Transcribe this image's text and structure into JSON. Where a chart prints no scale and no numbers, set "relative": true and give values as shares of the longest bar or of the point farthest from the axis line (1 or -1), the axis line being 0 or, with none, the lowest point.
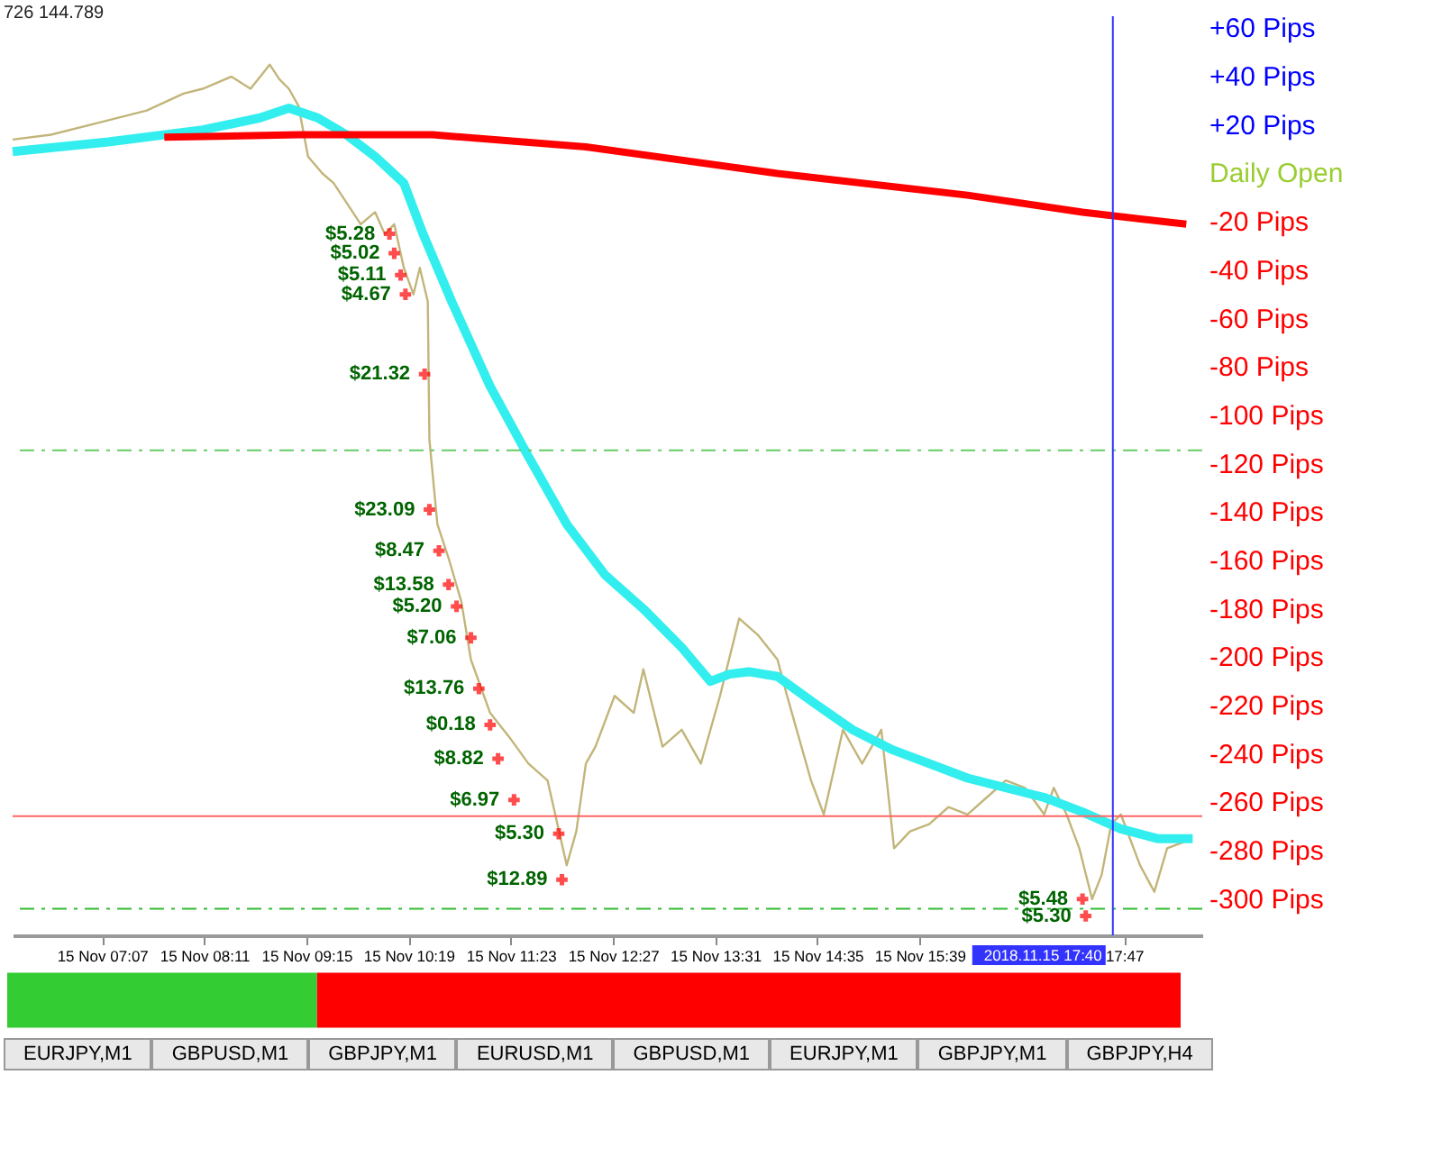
{
  "chart_data": [
    {
      "type": "line",
      "x": [
        "2018-11-15T06:11",
        "2018-11-15T06:35",
        "2018-11-15T07:05",
        "2018-11-15T07:35",
        "2018-11-15T07:58",
        "2018-11-15T08:10",
        "2018-11-15T08:28",
        "2018-11-15T08:40",
        "2018-11-15T08:52",
        "2018-11-15T08:58",
        "2018-11-15T09:04",
        "2018-11-15T09:10",
        "2018-11-15T09:16",
        "2018-11-15T09:25",
        "2018-11-15T09:32",
        "2018-11-15T09:40",
        "2018-11-15T09:49",
        "2018-11-15T09:58",
        "2018-11-15T10:04",
        "2018-11-15T10:10",
        "2018-11-15T10:16",
        "2018-11-15T10:22",
        "2018-11-15T10:26",
        "2018-11-15T10:31",
        "2018-11-15T10:32",
        "2018-11-15T10:37",
        "2018-11-15T10:44",
        "2018-11-15T10:52",
        "2018-11-15T10:58",
        "2018-11-15T11:10",
        "2018-11-15T11:22",
        "2018-11-15T11:34",
        "2018-11-15T11:46",
        "2018-11-15T11:58",
        "2018-11-15T12:04",
        "2018-11-15T12:10",
        "2018-11-15T12:16",
        "2018-11-15T12:28",
        "2018-11-15T12:40",
        "2018-11-15T12:46",
        "2018-11-15T12:58",
        "2018-11-15T13:10",
        "2018-11-15T13:22",
        "2018-11-15T13:34",
        "2018-11-15T13:46",
        "2018-11-15T13:58",
        "2018-11-15T14:10",
        "2018-11-15T14:16",
        "2018-11-15T14:22",
        "2018-11-15T14:31",
        "2018-11-15T14:39",
        "2018-11-15T14:51",
        "2018-11-15T15:03",
        "2018-11-15T15:15",
        "2018-11-15T15:23",
        "2018-11-15T15:33",
        "2018-11-15T15:45",
        "2018-11-15T15:57",
        "2018-11-15T16:09",
        "2018-11-15T16:21",
        "2018-11-15T16:33",
        "2018-11-15T16:45",
        "2018-11-15T16:57",
        "2018-11-15T17:03",
        "2018-11-15T17:11",
        "2018-11-15T17:19",
        "2018-11-15T17:27",
        "2018-11-15T17:33",
        "2018-11-15T17:39",
        "2018-11-15T17:45",
        "2018-11-15T17:57",
        "2018-11-15T18:06",
        "2018-11-15T18:14",
        "2018-11-15T18:26"
      ],
      "series": [
        {
          "color": "#c2b57a",
          "values": [
            14,
            16,
            21,
            26,
            33,
            35,
            40,
            35,
            45,
            39,
            35,
            28,
            7,
            0,
            -4,
            -12,
            -21,
            -16,
            -25,
            -21,
            -39,
            -50,
            -39,
            -53,
            -110,
            -145,
            -159,
            -177,
            -201,
            -223,
            -233,
            -244,
            -251,
            -286,
            -272,
            -244,
            -237,
            -216,
            -223,
            -205,
            -237,
            -230,
            -244,
            -216,
            -184,
            -191,
            -201,
            -216,
            -230,
            -251,
            -265,
            -230,
            -244,
            -230,
            -279,
            -272,
            -269,
            -262,
            -265,
            -258,
            -251,
            -254,
            -265,
            -254,
            -265,
            -279,
            -300,
            -290,
            -269,
            -265,
            -286,
            -297,
            -279,
            -276
          ]
        },
        {
          "color": "#33eeee",
          "x": [
            "2018-11-15T06:11",
            "2018-11-15T07:11",
            "2018-11-15T08:10",
            "2018-11-15T08:46",
            "2018-11-15T09:04",
            "2018-11-15T09:22",
            "2018-11-15T09:40",
            "2018-11-15T09:58",
            "2018-11-15T10:16",
            "2018-11-15T10:28",
            "2018-11-15T10:46",
            "2018-11-15T11:10",
            "2018-11-15T11:34",
            "2018-11-15T11:58",
            "2018-11-15T12:22",
            "2018-11-15T12:46",
            "2018-11-15T13:10",
            "2018-11-15T13:28",
            "2018-11-15T13:40",
            "2018-11-15T13:52",
            "2018-11-15T14:10",
            "2018-11-15T14:33",
            "2018-11-15T14:57",
            "2018-11-15T15:21",
            "2018-11-15T15:45",
            "2018-11-15T16:09",
            "2018-11-15T16:33",
            "2018-11-15T16:57",
            "2018-11-15T17:21",
            "2018-11-15T17:45",
            "2018-11-15T18:08",
            "2018-11-15T18:30"
          ],
          "values": [
            9,
            13,
            18,
            23,
            27,
            23,
            16,
            7,
            -4,
            -25,
            -53,
            -88,
            -117,
            -145,
            -166,
            -180,
            -196,
            -210,
            -207,
            -206,
            -208,
            -219,
            -230,
            -238,
            -244,
            -250,
            -254,
            -258,
            -264,
            -271,
            -275,
            -275
          ]
        },
        {
          "color": "#ff0000",
          "x": [
            "2018-11-15T07:46",
            "2018-11-15T09:10",
            "2018-11-15T10:34",
            "2018-11-15T12:10",
            "2018-11-15T14:10",
            "2018-11-15T16:09",
            "2018-11-15T17:21",
            "2018-11-15T18:26"
          ],
          "values": [
            15,
            16,
            16,
            11,
            0,
            -9,
            -16,
            -21
          ]
        },
        {
          "type": "scatter",
          "color": "#ff0000",
          "marker": "cross",
          "x": [
            "2018-11-15T10:07",
            "2018-11-15T10:10",
            "2018-11-15T10:14",
            "2018-11-15T10:17",
            "2018-11-15T10:29",
            "2018-11-15T10:32",
            "2018-11-15T10:38",
            "2018-11-15T10:44",
            "2018-11-15T10:49",
            "2018-11-15T10:58",
            "2018-11-15T11:03",
            "2018-11-15T11:10",
            "2018-11-15T11:15",
            "2018-11-15T11:25",
            "2018-11-15T11:53",
            "2018-11-15T11:55",
            "2018-11-15T17:21",
            "2018-11-15T17:23"
          ],
          "values": [
            -25,
            -33,
            -42,
            -50,
            -83,
            -139,
            -156,
            -170,
            -179,
            -192,
            -213,
            -228,
            -242,
            -259,
            -273,
            -292,
            -300,
            -307
          ]
        }
      ],
      "xlim": [
        "2018-11-15T06:11",
        "2018-11-15T18:36"
      ],
      "xticks": [
        {
          "value": "2018-11-15T07:07",
          "label": "15 Nov 07:07"
        },
        {
          "value": "2018-11-15T08:11",
          "label": "15 Nov 08:11"
        },
        {
          "value": "2018-11-15T09:15",
          "label": "15 Nov 09:15"
        },
        {
          "value": "2018-11-15T10:19",
          "label": "15 Nov 10:19"
        },
        {
          "value": "2018-11-15T11:23",
          "label": "15 Nov 11:23"
        },
        {
          "value": "2018-11-15T12:27",
          "label": "15 Nov 12:27"
        },
        {
          "value": "2018-11-15T13:31",
          "label": "15 Nov 13:31"
        },
        {
          "value": "2018-11-15T14:35",
          "label": "15 Nov 14:35"
        },
        {
          "value": "2018-11-15T15:39",
          "label": "15 Nov 15:39"
        },
        {
          "value": "2018-11-15T17:47",
          "label": "17:47"
        }
      ],
      "ylim": [
        -315,
        65
      ],
      "yticks": [
        {
          "value": 60,
          "label": "+60 Pips"
        },
        {
          "value": 40,
          "label": "+40 Pips"
        },
        {
          "value": 20,
          "label": "+20 Pips"
        },
        {
          "value": 0,
          "label": "Daily Open"
        },
        {
          "value": -20,
          "label": "-20 Pips"
        },
        {
          "value": -40,
          "label": "-40 Pips"
        },
        {
          "value": -60,
          "label": "-60 Pips"
        },
        {
          "value": -80,
          "label": "-80 Pips"
        },
        {
          "value": -100,
          "label": "-100 Pips"
        },
        {
          "value": -120,
          "label": "-120 Pips"
        },
        {
          "value": -140,
          "label": "-140 Pips"
        },
        {
          "value": -160,
          "label": "-160 Pips"
        },
        {
          "value": -180,
          "label": "-180 Pips"
        },
        {
          "value": -200,
          "label": "-200 Pips"
        },
        {
          "value": -220,
          "label": "-220 Pips"
        },
        {
          "value": -240,
          "label": "-240 Pips"
        },
        {
          "value": -260,
          "label": "-260 Pips"
        },
        {
          "value": -280,
          "label": "-280 Pips"
        },
        {
          "value": -300,
          "label": "-300 Pips"
        }
      ],
      "ref_lines": [
        {
          "axis": "y",
          "value": -114.5,
          "color": "#66cc66",
          "line_style": "dashed"
        },
        {
          "axis": "y",
          "value": -304,
          "color": "#33bb33",
          "line_style": "dashed"
        },
        {
          "axis": "y",
          "value": -265.7,
          "color": "#ff6666",
          "line_style": "solid"
        },
        {
          "axis": "x",
          "value": "2018-11-15T17:40",
          "color": "#3333ff",
          "line_style": "solid",
          "label": "2018.11.15 17:40"
        }
      ],
      "annotations": [
        {
          "text": "$5.28",
          "x": "2018-11-15T10:07",
          "y": -25
        },
        {
          "text": "$5.02",
          "x": "2018-11-15T10:10",
          "y": -33
        },
        {
          "text": "$5.11",
          "x": "2018-11-15T10:14",
          "y": -42
        },
        {
          "text": "$4.67",
          "x": "2018-11-15T10:17",
          "y": -50
        },
        {
          "text": "$21.32",
          "x": "2018-11-15T10:29",
          "y": -83
        },
        {
          "text": "$23.09",
          "x": "2018-11-15T10:32",
          "y": -139
        },
        {
          "text": "$8.47",
          "x": "2018-11-15T10:38",
          "y": -156
        },
        {
          "text": "$13.58",
          "x": "2018-11-15T10:44",
          "y": -170
        },
        {
          "text": "$5.20",
          "x": "2018-11-15T10:49",
          "y": -179
        },
        {
          "text": "$7.06",
          "x": "2018-11-15T10:58",
          "y": -192
        },
        {
          "text": "$13.76",
          "x": "2018-11-15T11:03",
          "y": -213
        },
        {
          "text": "$0.18",
          "x": "2018-11-15T11:10",
          "y": -228
        },
        {
          "text": "$8.82",
          "x": "2018-11-15T11:15",
          "y": -242
        },
        {
          "text": "$6.97",
          "x": "2018-11-15T11:25",
          "y": -259
        },
        {
          "text": "$5.30",
          "x": "2018-11-15T11:53",
          "y": -273
        },
        {
          "text": "$12.89",
          "x": "2018-11-15T11:55",
          "y": -292
        },
        {
          "text": "$5.48",
          "x": "2018-11-15T17:21",
          "y": -300
        },
        {
          "text": "$5.30",
          "x": "2018-11-15T17:23",
          "y": -307
        },
        "726 144.789",
        "EURJPY,M1",
        "GBPUSD,M1",
        "GBPJPY,M1",
        "EURUSD,M1",
        "GBPUSD,M1",
        "EURJPY,M1",
        "GBPJPY,M1",
        "GBPJPY,H4"
      ],
      "grid": false,
      "line_style": "solid"
    },
    {
      "type": "bar",
      "orientation": "horizontal",
      "stacked": true,
      "relative": true,
      "categories": [
        null
      ],
      "series": [
        {
          "color": "#33cc33",
          "values": [
            0.264
          ]
        },
        {
          "color": "#ff0000",
          "values": [
            0.736
          ]
        }
      ]
    }
  ]
}
